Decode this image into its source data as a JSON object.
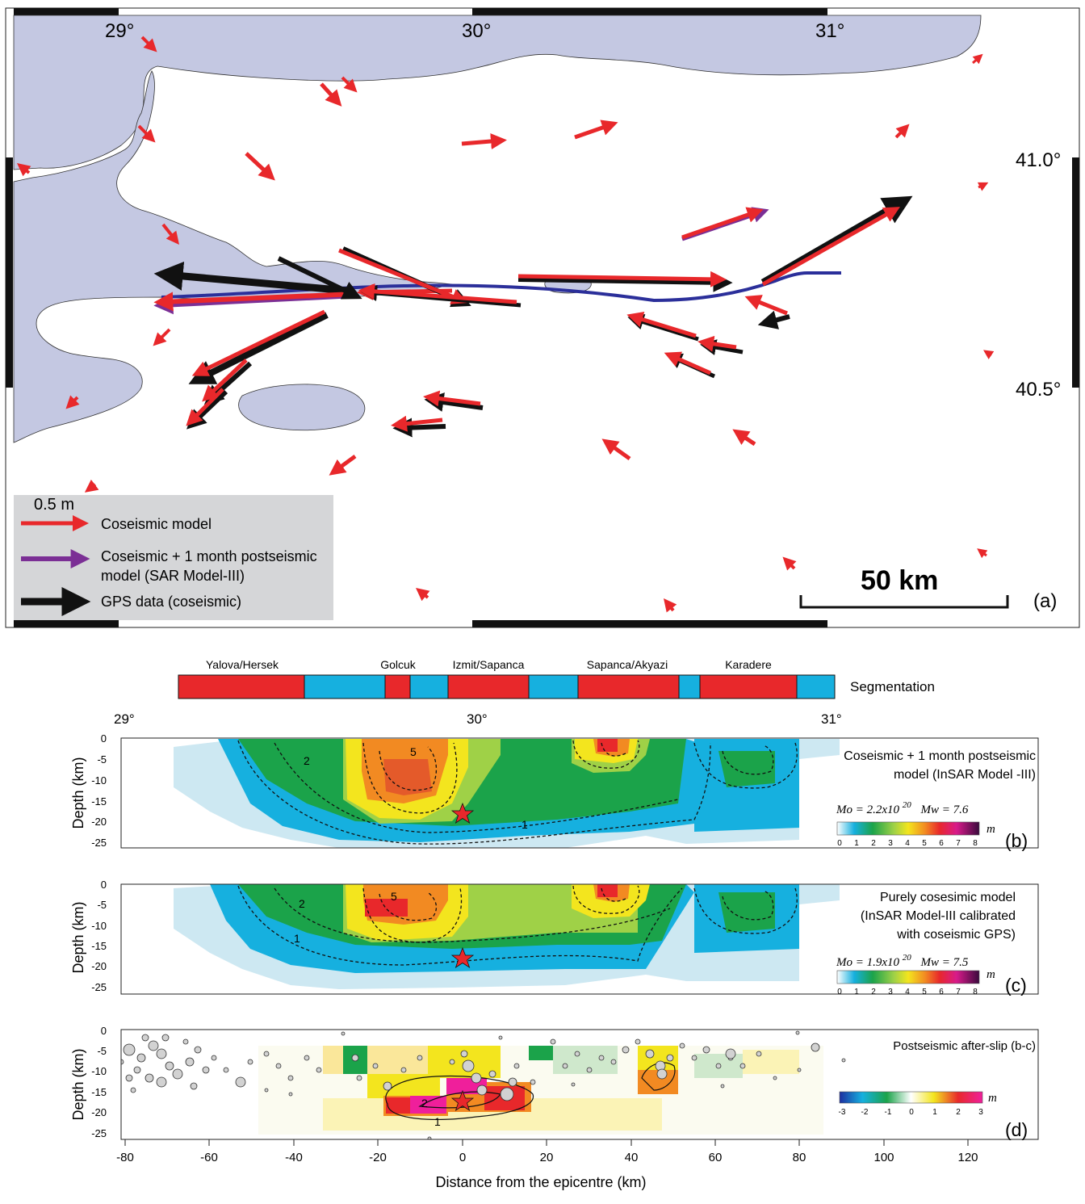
{
  "map": {
    "lon_labels": [
      "29°",
      "30°",
      "31°"
    ],
    "lat_labels": [
      "41.0°",
      "40.5°"
    ],
    "scalebar_label": "50 km",
    "panel_label": "(a)",
    "legend": {
      "scale_label": "0.5 m",
      "items": [
        {
          "label": "Coseismic model",
          "color": "#e8282b"
        },
        {
          "label": "Coseismic + 1 month postseismic",
          "label2": "model (SAR Model-III)",
          "color": "#7b2f95"
        },
        {
          "label": "GPS data (coseismic)",
          "color": "#111111"
        }
      ]
    },
    "colors": {
      "sea": "#c4c8e2",
      "fault": "#2b2f9a",
      "coseismic": "#e8282b",
      "postseismic": "#7b2f95",
      "gps": "#111111"
    }
  },
  "segmentation": {
    "title": "Segmentation",
    "labels": [
      "Yalova/Hersek",
      "Golcuk",
      "Izmit/Sapanca",
      "Sapanca/Akyazi",
      "Karadere"
    ],
    "colors": {
      "fault_segment": "#e8282b",
      "step": "#16b0df"
    }
  },
  "panels": [
    {
      "id": "b",
      "lon_labels": [
        "29°",
        "30°",
        "31°"
      ],
      "ylabel": "Depth (km)",
      "yticks": [
        "0",
        "-5",
        "-10",
        "-15",
        "-20",
        "-25"
      ],
      "desc1": "Coseismic + 1 month postseismic",
      "desc2": "model (InSAR Model -III)",
      "moment": "Mo =  2.2x10",
      "moment_exp": "20",
      "mw": "Mw = 7.6",
      "colorbar_ticks": [
        "0",
        "1",
        "2",
        "3",
        "4",
        "5",
        "6",
        "7",
        "8"
      ],
      "unit": "m",
      "contour_labels": [
        "2",
        "5",
        "1"
      ],
      "label": "(b)"
    },
    {
      "id": "c",
      "ylabel": "Depth (km)",
      "yticks": [
        "0",
        "-5",
        "-10",
        "-15",
        "-20",
        "-25"
      ],
      "desc1": "Purely cosesimic model",
      "desc2": "(InSAR Model-III calibrated",
      "desc3": "with coseismic GPS)",
      "moment": "Mo =  1.9x10",
      "moment_exp": "20",
      "mw": "Mw = 7.5",
      "colorbar_ticks": [
        "0",
        "1",
        "2",
        "3",
        "4",
        "5",
        "6",
        "7",
        "8"
      ],
      "unit": "m",
      "contour_labels": [
        "2",
        "5",
        "1"
      ],
      "label": "(c)"
    },
    {
      "id": "d",
      "ylabel": "Depth (km)",
      "yticks": [
        "0",
        "-5",
        "-10",
        "-15",
        "-20",
        "-25"
      ],
      "desc1": "Postseismic after-slip (b-c)",
      "colorbar_ticks": [
        "-3",
        "-2",
        "-1",
        "0",
        "1",
        "2",
        "3"
      ],
      "unit": "m",
      "contour_labels": [
        "2",
        "1"
      ],
      "label": "(d)",
      "xlabel": "Distance from the epicentre (km)",
      "xticks": [
        "-80",
        "-60",
        "-40",
        "-20",
        "0",
        "20",
        "40",
        "60",
        "80",
        "100",
        "120"
      ]
    }
  ]
}
